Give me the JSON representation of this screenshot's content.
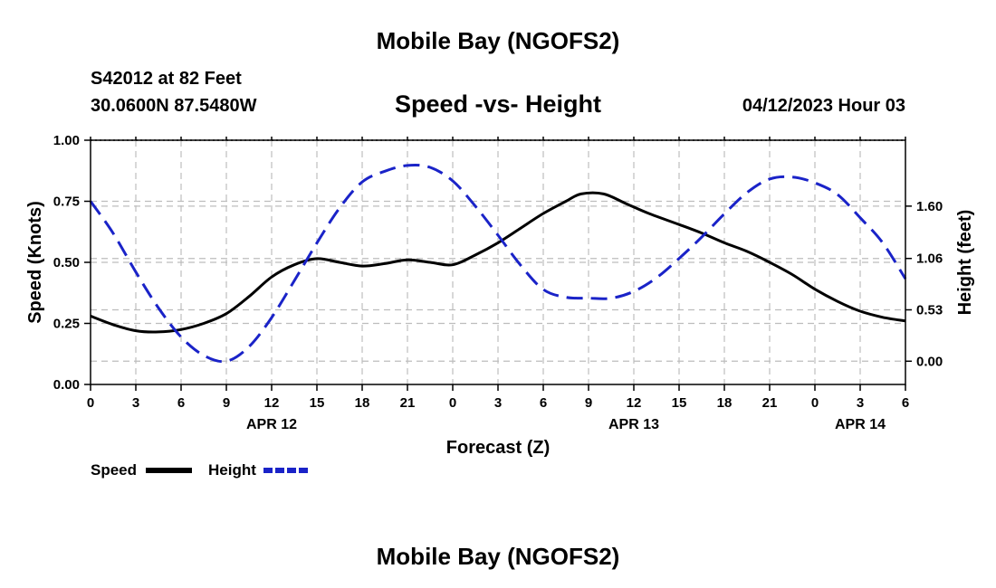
{
  "page": {
    "title": "Mobile Bay (NGOFS2)",
    "station": "S42012 at 82 Feet",
    "coordinates": "30.0600N  87.5480W",
    "datetime": "04/12/2023 Hour 03",
    "footer_title": "Mobile Bay (NGOFS2)"
  },
  "chart_data": {
    "type": "line",
    "title": "Speed -vs- Height",
    "xlabel": "Forecast (Z)",
    "ylabel": "Speed (Knots)",
    "y2label": "Height (feet)",
    "xlim": [
      0,
      54
    ],
    "ylim": [
      0,
      1.0
    ],
    "y2lim": [
      -0.24,
      2.28
    ],
    "x_ticks": [
      0,
      3,
      6,
      9,
      12,
      15,
      18,
      21,
      24,
      27,
      30,
      33,
      36,
      39,
      42,
      45,
      48,
      51,
      54
    ],
    "x_tick_labels": [
      "0",
      "3",
      "6",
      "9",
      "12",
      "15",
      "18",
      "21",
      "0",
      "3",
      "6",
      "9",
      "12",
      "15",
      "18",
      "21",
      "0",
      "3",
      "6"
    ],
    "date_labels": [
      {
        "x": 12,
        "label": "APR 12"
      },
      {
        "x": 36,
        "label": "APR 13"
      },
      {
        "x": 51,
        "label": "APR 14"
      }
    ],
    "y_ticks": [
      0.0,
      0.25,
      0.5,
      0.75,
      1.0
    ],
    "y_tick_labels": [
      "0.00",
      "0.25",
      "0.50",
      "0.75",
      "1.00"
    ],
    "y2_ticks": [
      0.0,
      0.53,
      1.06,
      1.6
    ],
    "y2_tick_labels": [
      "0.00",
      "0.53",
      "1.06",
      "1.60"
    ],
    "grid": true,
    "legend_position": "bottom-left",
    "series": [
      {
        "name": "Speed",
        "axis": "left",
        "color": "#000000",
        "style": "solid",
        "x": [
          0,
          1.5,
          3,
          4.5,
          6,
          7.5,
          9,
          10.5,
          12,
          13.5,
          15,
          16.5,
          18,
          19.5,
          21,
          22.5,
          24,
          25.5,
          27,
          28.5,
          30,
          31.5,
          32.5,
          34,
          35.5,
          37,
          39,
          40.5,
          42,
          43.5,
          45,
          46.5,
          48,
          49.5,
          51,
          52.5,
          54
        ],
        "values": [
          0.28,
          0.245,
          0.22,
          0.215,
          0.225,
          0.25,
          0.29,
          0.36,
          0.44,
          0.49,
          0.515,
          0.5,
          0.485,
          0.495,
          0.51,
          0.5,
          0.49,
          0.53,
          0.58,
          0.64,
          0.7,
          0.75,
          0.78,
          0.78,
          0.74,
          0.7,
          0.655,
          0.62,
          0.58,
          0.545,
          0.5,
          0.45,
          0.39,
          0.34,
          0.3,
          0.275,
          0.26
        ]
      },
      {
        "name": "Height",
        "axis": "right",
        "color": "#1a23c8",
        "style": "dashed",
        "x": [
          0,
          1.5,
          3,
          4.5,
          6,
          7.5,
          9,
          10.5,
          12,
          13.5,
          15,
          16.5,
          18,
          19.5,
          21,
          22.5,
          24,
          25.5,
          27,
          28.5,
          30,
          31.5,
          33,
          34.5,
          36,
          37.5,
          39,
          40.5,
          42,
          43.5,
          45,
          46.5,
          48,
          49.5,
          51,
          52.5,
          54
        ],
        "values": [
          1.65,
          1.32,
          0.92,
          0.55,
          0.25,
          0.06,
          0.0,
          0.15,
          0.45,
          0.83,
          1.22,
          1.58,
          1.85,
          1.96,
          2.02,
          2.0,
          1.86,
          1.6,
          1.3,
          0.99,
          0.74,
          0.66,
          0.65,
          0.65,
          0.72,
          0.86,
          1.06,
          1.28,
          1.52,
          1.74,
          1.88,
          1.9,
          1.84,
          1.72,
          1.48,
          1.22,
          0.85
        ]
      }
    ]
  }
}
